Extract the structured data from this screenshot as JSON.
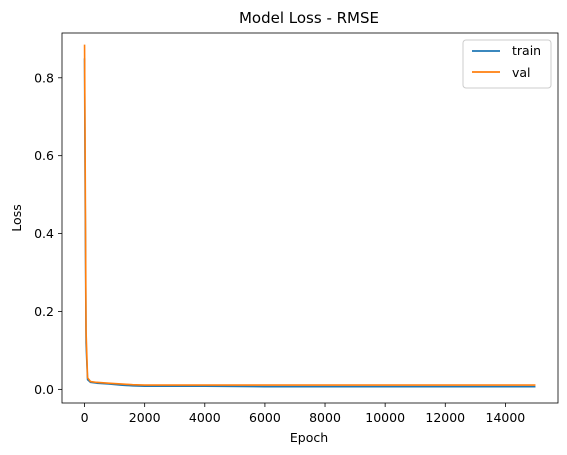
{
  "chart_data": {
    "type": "line",
    "title": "Model Loss - RMSE",
    "xlabel": "Epoch",
    "ylabel": "Loss",
    "xlim": [
      -750,
      15750
    ],
    "ylim": [
      -0.035,
      0.915
    ],
    "xticks": [
      0,
      2000,
      4000,
      6000,
      8000,
      10000,
      12000,
      14000
    ],
    "xtick_labels": [
      "0",
      "2000",
      "4000",
      "6000",
      "8000",
      "10000",
      "12000",
      "14000"
    ],
    "yticks": [
      0.0,
      0.2,
      0.4,
      0.6,
      0.8
    ],
    "ytick_labels": [
      "0.0",
      "0.2",
      "0.4",
      "0.6",
      "0.8"
    ],
    "grid": false,
    "legend_position": "top-right",
    "series": [
      {
        "name": "train",
        "color": "#1f77b4",
        "x": [
          0,
          20,
          50,
          100,
          200,
          400,
          800,
          1200,
          1600,
          2000,
          3000,
          4000,
          6000,
          8000,
          10000,
          12000,
          14000,
          15000
        ],
        "y": [
          0.85,
          0.5,
          0.12,
          0.025,
          0.018,
          0.016,
          0.014,
          0.011,
          0.009,
          0.008,
          0.008,
          0.008,
          0.007,
          0.007,
          0.007,
          0.007,
          0.007,
          0.007
        ]
      },
      {
        "name": "val",
        "color": "#ff7f0e",
        "x": [
          0,
          20,
          50,
          100,
          200,
          400,
          800,
          1200,
          1600,
          2000,
          3000,
          4000,
          6000,
          8000,
          10000,
          12000,
          14000,
          15000
        ],
        "y": [
          0.885,
          0.6,
          0.15,
          0.03,
          0.02,
          0.018,
          0.016,
          0.014,
          0.012,
          0.011,
          0.011,
          0.011,
          0.011,
          0.011,
          0.011,
          0.011,
          0.011,
          0.011
        ]
      }
    ]
  }
}
